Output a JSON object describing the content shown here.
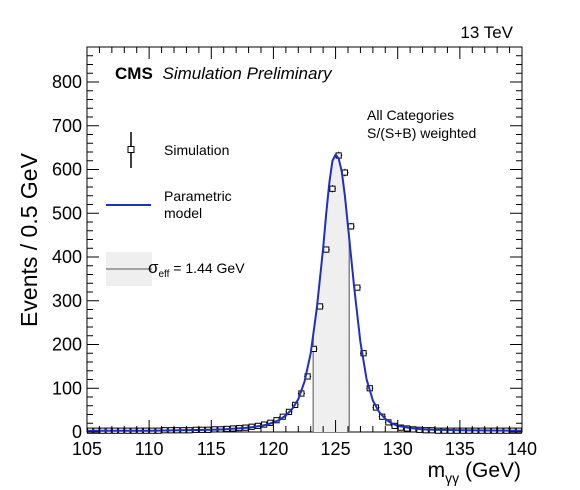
{
  "chart_data": {
    "type": "line",
    "energy_label": "13 TeV",
    "cms_label": "CMS",
    "cms_sublabel": "Simulation Preliminary",
    "ylabel": "Events / 0.5 GeV",
    "xlabel": {
      "base": "m",
      "sub": "γγ",
      "unit": " (GeV)"
    },
    "xlim": [
      105,
      140
    ],
    "ylim": [
      0,
      880
    ],
    "x_ticks": [
      105,
      110,
      115,
      120,
      125,
      130,
      135,
      140
    ],
    "y_ticks": [
      0,
      100,
      200,
      300,
      400,
      500,
      600,
      700,
      800
    ],
    "annotation_lines": [
      "All Categories",
      "S/(S+B) weighted"
    ],
    "legend": {
      "simulation": "Simulation",
      "model_line1": "Parametric",
      "model_line2": "model",
      "sigma_symbol": "σ",
      "sigma_sub": "eff",
      "sigma_value": " = 1.44 GeV"
    },
    "sigma_eff_band": [
      123.2,
      126.1
    ],
    "series": [
      {
        "name": "Simulation",
        "x": [
          105.25,
          105.75,
          106.25,
          106.75,
          107.25,
          107.75,
          108.25,
          108.75,
          109.25,
          109.75,
          110.25,
          110.75,
          111.25,
          111.75,
          112.25,
          112.75,
          113.25,
          113.75,
          114.25,
          114.75,
          115.25,
          115.75,
          116.25,
          116.75,
          117.25,
          117.75,
          118.25,
          118.75,
          119.25,
          119.75,
          120.25,
          120.75,
          121.25,
          121.75,
          122.25,
          122.75,
          123.25,
          123.75,
          124.25,
          124.75,
          125.25,
          125.75,
          126.25,
          126.75,
          127.25,
          127.75,
          128.25,
          128.75,
          129.25,
          129.75,
          130.25,
          130.75,
          131.25,
          131.75,
          132.25,
          132.75,
          133.25,
          133.75,
          134.25,
          134.75,
          135.25,
          135.75,
          136.25,
          136.75,
          137.25,
          137.75,
          138.25,
          138.75,
          139.25,
          139.75
        ],
        "values": [
          3,
          3,
          3,
          3,
          3,
          3,
          3,
          3,
          3,
          3,
          3,
          3,
          4,
          4,
          4,
          4,
          4,
          5,
          5,
          5,
          6,
          6,
          7,
          8,
          9,
          10,
          12,
          14,
          17,
          21,
          27,
          35,
          46,
          62,
          88,
          127,
          190,
          287,
          417,
          556,
          632,
          593,
          470,
          330,
          180,
          100,
          56,
          35,
          22,
          14,
          10,
          8,
          6,
          5,
          4,
          4,
          3,
          3,
          3,
          3,
          3,
          3,
          3,
          3,
          3,
          3,
          3,
          3,
          3,
          3
        ]
      },
      {
        "name": "Parametric model",
        "x": [
          105,
          110,
          115,
          116,
          117,
          118,
          119,
          119.5,
          120,
          120.5,
          121,
          121.5,
          122,
          122.5,
          123,
          123.5,
          124,
          124.25,
          124.5,
          124.75,
          125,
          125.25,
          125.5,
          125.75,
          126,
          126.5,
          127,
          127.5,
          128,
          128.5,
          129,
          129.5,
          130,
          131,
          132,
          133,
          135,
          140
        ],
        "values": [
          3,
          3,
          5,
          6,
          8,
          10,
          14,
          17,
          22,
          28,
          38,
          52,
          75,
          115,
          180,
          285,
          420,
          500,
          570,
          620,
          634,
          625,
          595,
          540,
          470,
          330,
          205,
          120,
          72,
          46,
          30,
          20,
          14,
          9,
          6,
          5,
          4,
          3
        ]
      }
    ]
  }
}
